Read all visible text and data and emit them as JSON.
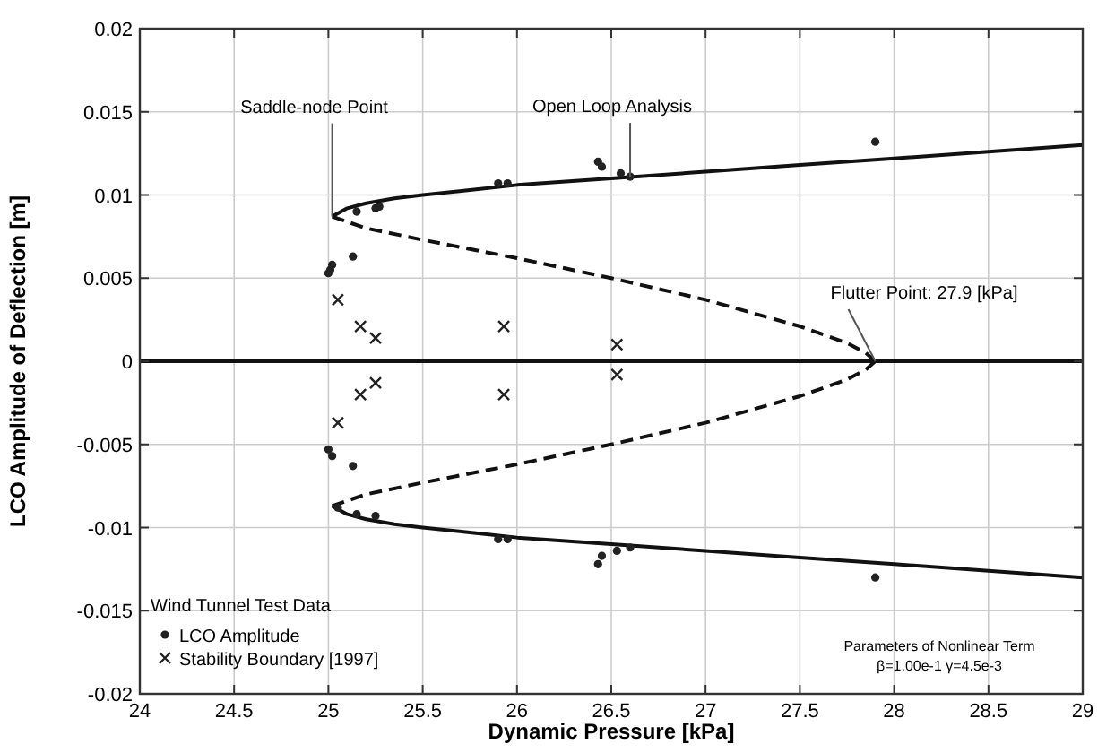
{
  "chart_data": {
    "type": "line",
    "xlabel": "Dynamic Pressure  [kPa]",
    "ylabel": "LCO Amplitude of Deflection  [m]",
    "xlim": [
      24,
      29
    ],
    "xticks": [
      24,
      24.5,
      25,
      25.5,
      26,
      26.5,
      27,
      27.5,
      28,
      28.5,
      29
    ],
    "ylim": [
      -0.02,
      0.02
    ],
    "yticks": [
      -0.02,
      -0.015,
      -0.01,
      -0.005,
      0,
      0.005,
      0.01,
      0.015,
      0.02
    ],
    "grid": true,
    "legend": "bottom left",
    "legend_title": "Wind Tunnel Test Data",
    "series": [
      {
        "color": "#111111",
        "line_style": "solid",
        "x": [
          25.02,
          25.1,
          25.2,
          25.35,
          25.5,
          25.75,
          26,
          26.5,
          27,
          27.5,
          28,
          28.5,
          29
        ],
        "values": [
          0.0087,
          0.0092,
          0.0095,
          0.0098,
          0.01,
          0.0103,
          0.0106,
          0.011,
          0.0114,
          0.0118,
          0.0122,
          0.0126,
          0.013
        ]
      },
      {
        "color": "#111111",
        "line_style": "solid",
        "x": [
          25.02,
          25.1,
          25.2,
          25.35,
          25.5,
          25.75,
          26,
          26.5,
          27,
          27.5,
          28,
          28.5,
          29
        ],
        "values": [
          -0.0087,
          -0.0092,
          -0.0095,
          -0.0098,
          -0.01,
          -0.0103,
          -0.0106,
          -0.011,
          -0.0114,
          -0.0118,
          -0.0122,
          -0.0126,
          -0.013
        ]
      },
      {
        "color": "#111111",
        "line_style": "dashed",
        "x": [
          25.02,
          25.2,
          25.5,
          26,
          26.5,
          27,
          27.5,
          27.75,
          27.85,
          27.9
        ],
        "values": [
          0.0087,
          0.008,
          0.0073,
          0.0062,
          0.005,
          0.0037,
          0.0021,
          0.0011,
          0.0005,
          0
        ]
      },
      {
        "color": "#111111",
        "line_style": "dashed",
        "x": [
          25.02,
          25.2,
          25.5,
          26,
          26.5,
          27,
          27.5,
          27.75,
          27.85,
          27.9
        ],
        "values": [
          -0.0087,
          -0.008,
          -0.0073,
          -0.0062,
          -0.005,
          -0.0037,
          -0.0021,
          -0.0011,
          -0.0005,
          0
        ]
      },
      {
        "color": "#111111",
        "line_style": "solid",
        "x": [
          24,
          29
        ],
        "values": [
          0,
          0
        ]
      },
      {
        "type": "scatter",
        "name": "LCO Amplitude",
        "color": "#222222",
        "marker": "circle",
        "x": [
          25.0,
          25.01,
          25.02,
          25.13,
          25.15,
          25.25,
          25.27,
          25.9,
          25.95,
          26.43,
          26.45,
          26.55,
          26.6,
          27.9,
          25.0,
          25.02,
          25.13,
          25.05,
          25.15,
          25.25,
          25.9,
          25.95,
          26.43,
          26.45,
          26.53,
          26.6,
          27.9
        ],
        "values": [
          0.0053,
          0.0055,
          0.0058,
          0.0063,
          0.009,
          0.0092,
          0.0093,
          0.0107,
          0.0107,
          0.012,
          0.0117,
          0.0113,
          0.0111,
          0.0132,
          -0.0053,
          -0.0057,
          -0.0063,
          -0.0088,
          -0.0092,
          -0.0093,
          -0.0107,
          -0.0107,
          -0.0122,
          -0.0117,
          -0.0114,
          -0.0112,
          -0.013
        ]
      },
      {
        "type": "scatter",
        "name": "Stability Boundary  [1997]",
        "color": "#222222",
        "marker": "cross",
        "x": [
          25.05,
          25.17,
          25.25,
          25.93,
          26.53,
          25.05,
          25.17,
          25.25,
          25.93,
          26.53
        ],
        "values": [
          0.0037,
          0.0021,
          0.0014,
          0.0021,
          0.001,
          -0.0037,
          -0.002,
          -0.0013,
          -0.002,
          -0.0008
        ]
      }
    ],
    "annotations": [
      {
        "text": "Saddle-node Point",
        "x": 25.02,
        "y": 0.0087
      },
      {
        "text": "Open Loop Analysis",
        "x": 26.6,
        "y": 0.0111
      },
      {
        "text": "Flutter Point: 27.9 [kPa]",
        "x": 27.9,
        "y": 0
      },
      "Parameters of Nonlinear Term",
      "β=1.00e-1  γ=4.5e-3"
    ]
  }
}
